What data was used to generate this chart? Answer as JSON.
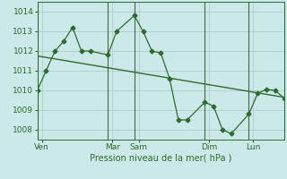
{
  "bg_color": "#cce9e9",
  "grid_color": "#b0cccc",
  "line_color": "#2d6b2d",
  "vline_color": "#446644",
  "ylim": [
    1007.5,
    1014.5
  ],
  "xlim": [
    0,
    28
  ],
  "x_ticks": [
    0.5,
    8.5,
    11.5,
    19.5,
    24.5
  ],
  "x_tick_labels": [
    "Ven",
    "Mar",
    "Sam",
    "Dim",
    "Lun"
  ],
  "vlines_x": [
    0,
    8,
    11,
    19,
    24,
    28
  ],
  "series1_x": [
    0,
    1,
    2,
    3,
    4,
    5,
    6,
    8,
    9,
    11,
    12,
    13,
    14,
    15,
    16,
    17,
    19,
    20,
    21,
    22,
    24,
    25,
    26,
    27,
    28
  ],
  "series1_y": [
    1010.0,
    1011.0,
    1012.0,
    1012.5,
    1013.2,
    1012.0,
    1012.0,
    1011.8,
    1013.0,
    1013.8,
    1013.0,
    1012.0,
    1011.9,
    1010.6,
    1008.5,
    1008.5,
    1009.4,
    1009.2,
    1008.0,
    1007.8,
    1008.8,
    1009.85,
    1010.05,
    1010.0,
    1009.6
  ],
  "series2_x": [
    0,
    28
  ],
  "series2_y": [
    1011.75,
    1009.65
  ],
  "ytick_vals": [
    1008,
    1009,
    1010,
    1011,
    1012,
    1013,
    1014
  ],
  "xlabel": "Pression niveau de la mer( hPa )"
}
